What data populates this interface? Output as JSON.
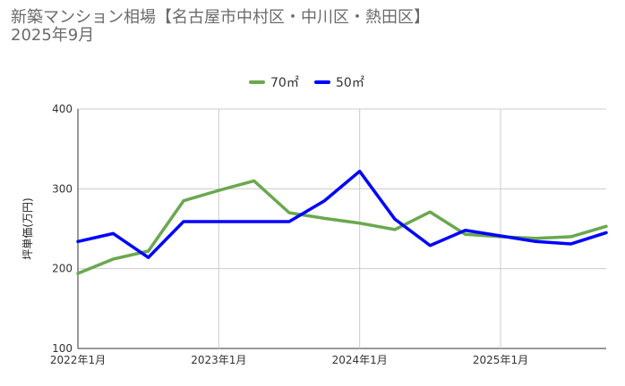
{
  "title_line1": "新築マンション相場【名古屋市中村区・中川区・熱田区】",
  "title_line2": "2025年9月",
  "chart_data": {
    "type": "line",
    "ylabel": "坪単価(万円)",
    "ylim": [
      100,
      400
    ],
    "yticks": [
      100,
      200,
      300,
      400
    ],
    "x_tick_labels": [
      "2022年1月",
      "2023年1月",
      "2024年1月",
      "2025年1月"
    ],
    "grid": true,
    "legend_position": "top",
    "series": [
      {
        "name": "70㎡",
        "color": "#6aa84f",
        "values": [
          194,
          212,
          222,
          285,
          298,
          310,
          270,
          263,
          257,
          249,
          271,
          243,
          240,
          238,
          240,
          253
        ]
      },
      {
        "name": "50㎡",
        "color": "#0000ff",
        "values": [
          234,
          244,
          214,
          259,
          259,
          259,
          259,
          285,
          322,
          262,
          229,
          248,
          241,
          234,
          231,
          245
        ]
      }
    ]
  }
}
